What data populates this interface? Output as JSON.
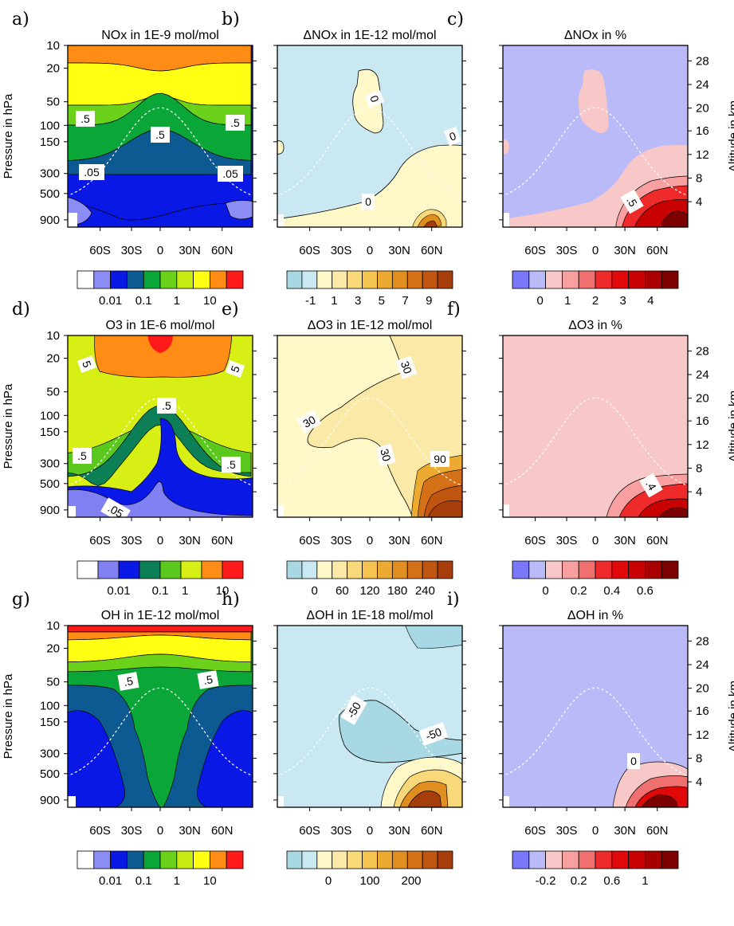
{
  "colors": {
    "abs12": [
      "#ffffff",
      "#8c8cf5",
      "#0a18e6",
      "#0d5a93",
      "#0aa637",
      "#6bd11a",
      "#c6ec14",
      "#ffff14",
      "#ff8c14",
      "#ff1a1a"
    ],
    "abs_o3": [
      "#ffffff",
      "#8080f2",
      "#0a18e6",
      "#0d7f56",
      "#5bc81d",
      "#d7ef14",
      "#ff8c14",
      "#ff1a1a"
    ],
    "blue_orange": [
      "#a8d8e3",
      "#c9e8f2",
      "#fff8c8",
      "#fbe9a8",
      "#f8d878",
      "#f5c450",
      "#ecaa30",
      "#e08e20",
      "#d37018",
      "#c05510",
      "#a63e0c"
    ],
    "blue_red": [
      "#7878f8",
      "#babaf8",
      "#f8c8c8",
      "#f8a0a0",
      "#f07070",
      "#ee2a2a",
      "#e00808",
      "#c80000",
      "#a80000",
      "#7c0000"
    ],
    "tropopause": "#ffffff",
    "contour": "#000000"
  },
  "chart_data": [
    {
      "id": "a",
      "letter": "a)",
      "type": "contour",
      "title": "NOx in 1E-9 mol/mol",
      "ylabel": "Pressure in hPa",
      "yticks": [
        "10",
        "20",
        "50",
        "100",
        "150",
        "300",
        "500",
        "900"
      ],
      "xticks": [
        "60S",
        "30S",
        "0",
        "30N",
        "60N"
      ],
      "contour_labels": [
        ".5",
        ".5",
        ".5",
        ".05",
        ".05"
      ],
      "colorbar": {
        "palette": "abs12",
        "labels": [
          "0.01",
          "0.1",
          "1",
          "10"
        ]
      }
    },
    {
      "id": "b",
      "letter": "b)",
      "type": "contour",
      "title": "ΔNOx in 1E-12 mol/mol",
      "xticks": [
        "60S",
        "30S",
        "0",
        "30N",
        "60N"
      ],
      "contour_labels": [
        "0",
        "0",
        "0"
      ],
      "colorbar": {
        "palette": "blue_orange",
        "labels": [
          "-1",
          "1",
          "3",
          "5",
          "7",
          "9"
        ]
      }
    },
    {
      "id": "c",
      "letter": "c)",
      "type": "contour",
      "title": "ΔNOx in %",
      "y2label": "Altitude in km",
      "y2ticks": [
        "28",
        "24",
        "20",
        "16",
        "12",
        "8",
        "4"
      ],
      "xticks": [
        "60S",
        "30S",
        "0",
        "30N",
        "60N"
      ],
      "contour_labels": [
        ".5"
      ],
      "colorbar": {
        "palette": "blue_red",
        "labels": [
          "0",
          "1",
          "2",
          "3",
          "4"
        ]
      }
    },
    {
      "id": "d",
      "letter": "d)",
      "type": "contour",
      "title": "O3 in 1E-6 mol/mol",
      "ylabel": "Pressure in hPa",
      "yticks": [
        "10",
        "20",
        "50",
        "100",
        "150",
        "300",
        "500",
        "900"
      ],
      "xticks": [
        "60S",
        "30S",
        "0",
        "30N",
        "60N"
      ],
      "contour_labels": [
        "5",
        "5",
        ".5",
        ".5",
        ".5",
        ".05"
      ],
      "colorbar": {
        "palette": "abs_o3",
        "labels": [
          "0.01",
          "0.1",
          "1",
          "10"
        ]
      }
    },
    {
      "id": "e",
      "letter": "e)",
      "type": "contour",
      "title": "ΔO3 in 1E-12 mol/mol",
      "xticks": [
        "60S",
        "30S",
        "0",
        "30N",
        "60N"
      ],
      "contour_labels": [
        "30",
        "30",
        "30",
        "90"
      ],
      "colorbar": {
        "palette": "blue_orange",
        "labels": [
          "0",
          "60",
          "120",
          "180",
          "240"
        ]
      }
    },
    {
      "id": "f",
      "letter": "f)",
      "type": "contour",
      "title": "ΔO3 in %",
      "y2label": "Altitude in km",
      "y2ticks": [
        "28",
        "24",
        "20",
        "16",
        "12",
        "8",
        "4"
      ],
      "xticks": [
        "60S",
        "30S",
        "0",
        "30N",
        "60N"
      ],
      "contour_labels": [
        ".4"
      ],
      "colorbar": {
        "palette": "blue_red",
        "labels": [
          "0",
          "0.2",
          "0.4",
          "0.6"
        ]
      }
    },
    {
      "id": "g",
      "letter": "g)",
      "type": "contour",
      "title": "OH in 1E-12 mol/mol",
      "ylabel": "Pressure in hPa",
      "yticks": [
        "10",
        "20",
        "50",
        "100",
        "150",
        "300",
        "500",
        "900"
      ],
      "xticks": [
        "60S",
        "30S",
        "0",
        "30N",
        "60N"
      ],
      "contour_labels": [
        ".5",
        ".5"
      ],
      "colorbar": {
        "palette": "abs12",
        "labels": [
          "0.01",
          "0.1",
          "1",
          "10"
        ]
      }
    },
    {
      "id": "h",
      "letter": "h)",
      "type": "contour",
      "title": "ΔOH in 1E-18 mol/mol",
      "xticks": [
        "60S",
        "30S",
        "0",
        "30N",
        "60N"
      ],
      "contour_labels": [
        "-50",
        "-50"
      ],
      "colorbar": {
        "palette": "blue_orange",
        "labels": [
          "0",
          "100",
          "200"
        ]
      }
    },
    {
      "id": "i",
      "letter": "i)",
      "type": "contour",
      "title": "ΔOH in %",
      "y2label": "Altitude in km",
      "y2ticks": [
        "28",
        "24",
        "20",
        "16",
        "12",
        "8",
        "4"
      ],
      "xticks": [
        "60S",
        "30S",
        "0",
        "30N",
        "60N"
      ],
      "contour_labels": [
        "0"
      ],
      "colorbar": {
        "palette": "blue_red",
        "labels": [
          "-0.2",
          "0.2",
          "0.6",
          "1"
        ]
      }
    }
  ]
}
